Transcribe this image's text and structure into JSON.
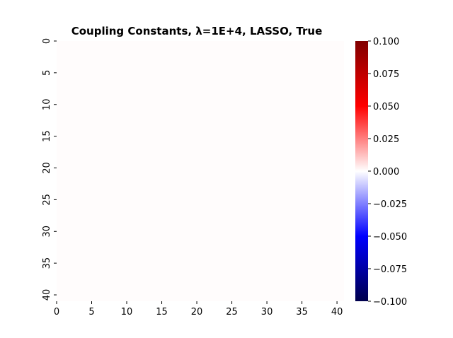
{
  "chart_data": {
    "type": "heatmap",
    "title": "Coupling Constants, λ=1E+4, LASSO, True",
    "xlabel": "",
    "ylabel": "",
    "rows": 41,
    "cols": 41,
    "fill_value": 0.0,
    "xticks": [
      "0",
      "5",
      "10",
      "15",
      "20",
      "25",
      "30",
      "35",
      "40"
    ],
    "yticks": [
      "0",
      "5",
      "10",
      "15",
      "20",
      "25",
      "30",
      "35",
      "40"
    ],
    "xlim": [
      0,
      41
    ],
    "ylim": [
      0,
      41
    ],
    "colorbar": {
      "vmin": -0.1,
      "vmax": 0.1,
      "colormap": "seismic",
      "ticks": [
        "0.100",
        "0.075",
        "0.050",
        "0.025",
        "0.000",
        "−0.025",
        "−0.050",
        "−0.075",
        "−0.100"
      ],
      "tick_values": [
        0.1,
        0.075,
        0.05,
        0.025,
        0.0,
        -0.025,
        -0.05,
        -0.075,
        -0.1
      ]
    },
    "cell_color": "#fffcfc"
  }
}
